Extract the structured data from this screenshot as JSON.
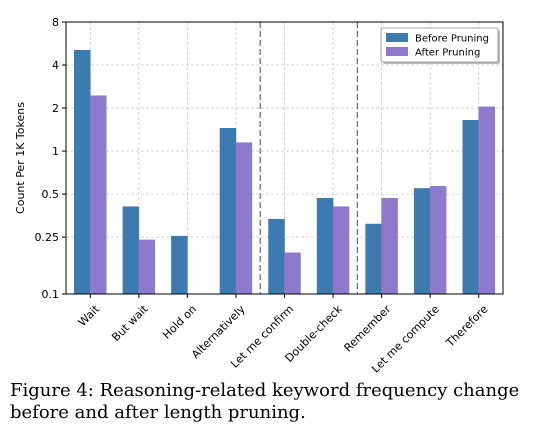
{
  "chart_data": {
    "type": "bar",
    "categories": [
      "Wait",
      "But wait",
      "Hold on",
      "Alternatively",
      "Let me confirm",
      "Double-check",
      "Remember",
      "Let me compute",
      "Therefore"
    ],
    "series": [
      {
        "name": "Before Pruning",
        "color": "#3c7ab0",
        "values": [
          5.1,
          0.41,
          0.255,
          1.45,
          0.335,
          0.47,
          0.31,
          0.55,
          1.65
        ]
      },
      {
        "name": "After Pruning",
        "color": "#8f79cc",
        "values": [
          2.45,
          0.24,
          null,
          1.15,
          0.195,
          0.41,
          0.47,
          0.57,
          2.05
        ]
      }
    ],
    "ylabel": "Count Per 1K Tokens",
    "xlabel": "",
    "yscale": "log2",
    "ylim": [
      0.1,
      8
    ],
    "yticks": [
      0.1,
      0.25,
      0.5,
      1,
      2,
      4,
      8
    ],
    "ytick_labels": [
      "0.1",
      "0.25",
      "0.5",
      "1",
      "2",
      "4",
      "8"
    ],
    "grid": true,
    "legend_position": "top-right",
    "separators_after_index": [
      3,
      5
    ]
  },
  "caption": {
    "text": "Figure 4: Reasoning-related keyword frequency change before and after length pruning."
  }
}
